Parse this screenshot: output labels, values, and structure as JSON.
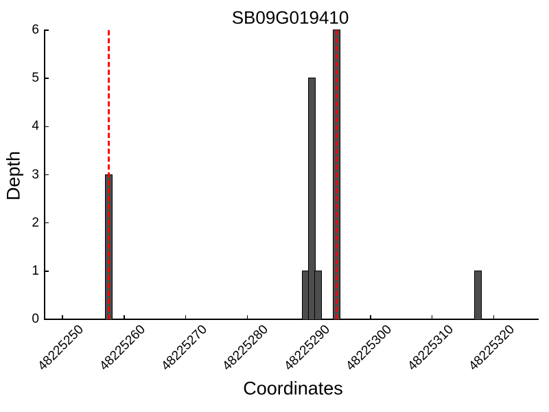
{
  "figure": {
    "background": "#ffffff"
  },
  "chart_data": {
    "type": "bar",
    "title": "SB09G019410",
    "xlabel": "Coordinates",
    "ylabel": "Depth",
    "x_ticks": [
      48225250,
      48225260,
      48225270,
      48225280,
      48225290,
      48225300,
      48225310,
      48225320
    ],
    "y_ticks": [
      0,
      1,
      2,
      3,
      4,
      5,
      6
    ],
    "xlim": [
      48225247.1,
      48225327.2
    ],
    "ylim": [
      0,
      6
    ],
    "x_tick_rotation": 45,
    "grid": false,
    "legend": null,
    "bar_width": 1,
    "bar_align": "edge",
    "bars": [
      {
        "coordinate": 48225257,
        "depth": 3
      },
      {
        "coordinate": 48225289,
        "depth": 1
      },
      {
        "coordinate": 48225290,
        "depth": 5
      },
      {
        "coordinate": 48225291,
        "depth": 1
      },
      {
        "coordinate": 48225294,
        "depth": 6
      },
      {
        "coordinate": 48225317,
        "depth": 1
      }
    ],
    "highlight_lines": [
      {
        "coordinate": 48225257.5,
        "style": "dashed",
        "spans_full_height": true
      },
      {
        "coordinate": 48225294.5,
        "style": "dashed",
        "spans_full_height": true
      }
    ],
    "colors": {
      "bar_fill": "#4d4d4d",
      "bar_edge": "#000000",
      "highlight_line": "#ff0000",
      "axis": "#000000",
      "text": "#000000"
    }
  }
}
